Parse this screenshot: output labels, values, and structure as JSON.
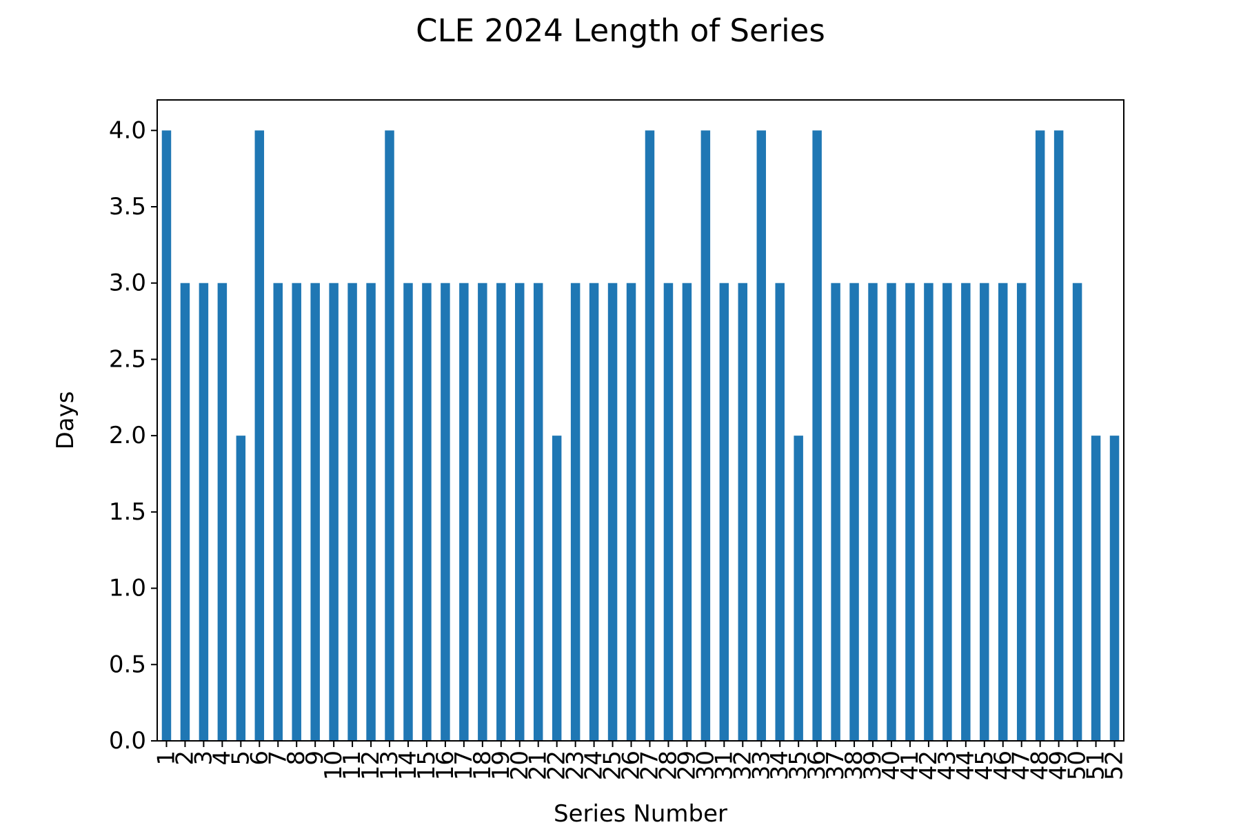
{
  "chart_data": {
    "type": "bar",
    "title": "CLE 2024 Length of Series",
    "xlabel": "Series Number",
    "ylabel": "Days",
    "categories": [
      "1",
      "2",
      "3",
      "4",
      "5",
      "6",
      "7",
      "8",
      "9",
      "10",
      "11",
      "12",
      "13",
      "14",
      "15",
      "16",
      "17",
      "18",
      "19",
      "20",
      "21",
      "22",
      "23",
      "24",
      "25",
      "26",
      "27",
      "28",
      "29",
      "30",
      "31",
      "32",
      "33",
      "34",
      "35",
      "36",
      "37",
      "38",
      "39",
      "40",
      "41",
      "42",
      "43",
      "44",
      "45",
      "46",
      "47",
      "48",
      "49",
      "50",
      "51",
      "52"
    ],
    "values": [
      4,
      3,
      3,
      3,
      2,
      4,
      3,
      3,
      3,
      3,
      3,
      3,
      4,
      3,
      3,
      3,
      3,
      3,
      3,
      3,
      3,
      2,
      3,
      3,
      3,
      3,
      4,
      3,
      3,
      4,
      3,
      3,
      4,
      3,
      2,
      4,
      3,
      3,
      3,
      3,
      3,
      3,
      3,
      3,
      3,
      3,
      3,
      4,
      4,
      3,
      2,
      2
    ],
    "ylim": [
      0,
      4.2
    ],
    "yticks": [
      "0.0",
      "0.5",
      "1.0",
      "1.5",
      "2.0",
      "2.5",
      "3.0",
      "3.5",
      "4.0"
    ],
    "grid": false,
    "legend": "none",
    "bar_color": "#1f77b4"
  }
}
